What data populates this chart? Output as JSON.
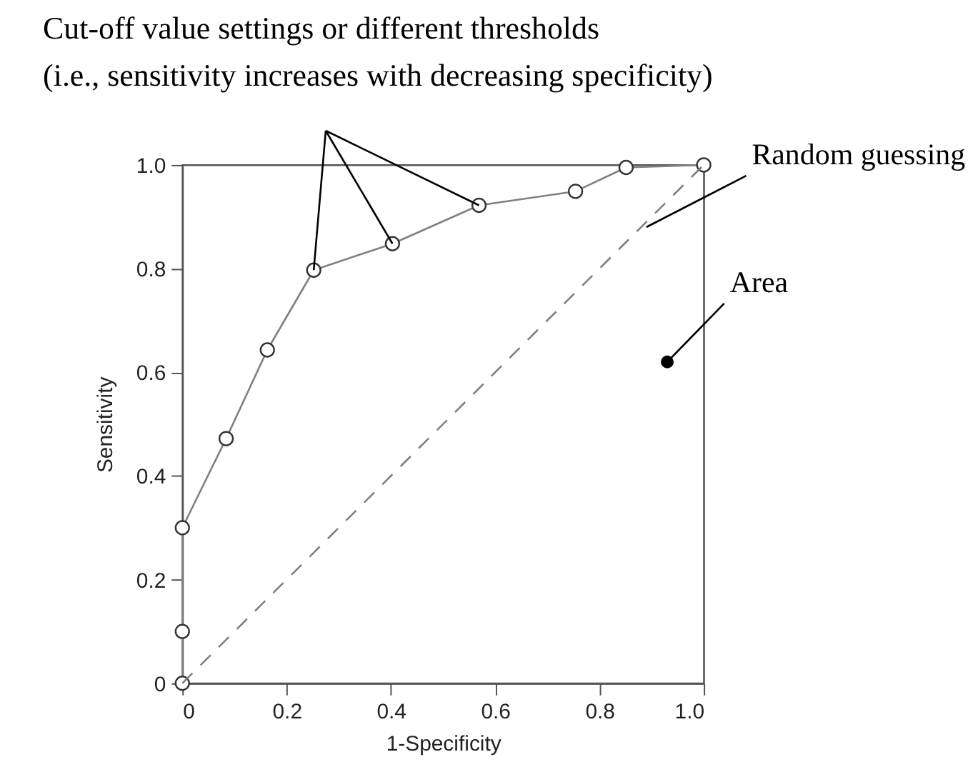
{
  "chart_data": {
    "type": "line",
    "title": [
      "Cut-off value settings or different thresholds",
      "(i.e., sensitivity increases with decreasing specificity)"
    ],
    "xlabel": "1-Specificity",
    "ylabel": "Sensitivity",
    "series": [
      {
        "x": [
          0,
          0,
          0,
          0.084,
          0.163,
          0.252,
          0.403,
          0.569,
          0.754,
          0.851,
          1.0
        ],
        "values": [
          0,
          0.1,
          0.3,
          0.472,
          0.643,
          0.797,
          0.848,
          0.922,
          0.949,
          0.995,
          1.0
        ],
        "color": "#808080",
        "marker": "circle",
        "line_style": "solid"
      },
      {
        "x": [
          0,
          1
        ],
        "values": [
          0,
          1
        ],
        "color": "#808080",
        "marker": "none",
        "line_style": "dashed"
      }
    ],
    "annotations": [
      {
        "text": "Random guessing",
        "x": 0.89,
        "y": 0.88
      },
      {
        "text": "Area",
        "x": 0.93,
        "y": 0.62
      }
    ],
    "xlim": [
      0,
      1
    ],
    "ylim": [
      0,
      1
    ],
    "xticks": [
      0,
      0.2,
      0.4,
      0.6,
      0.8,
      {
        "value": 1,
        "label": "1.0"
      }
    ],
    "yticks": [
      0,
      0.2,
      0.4,
      0.6,
      0.8,
      {
        "value": 1,
        "label": "1.0"
      }
    ],
    "grid": false
  }
}
